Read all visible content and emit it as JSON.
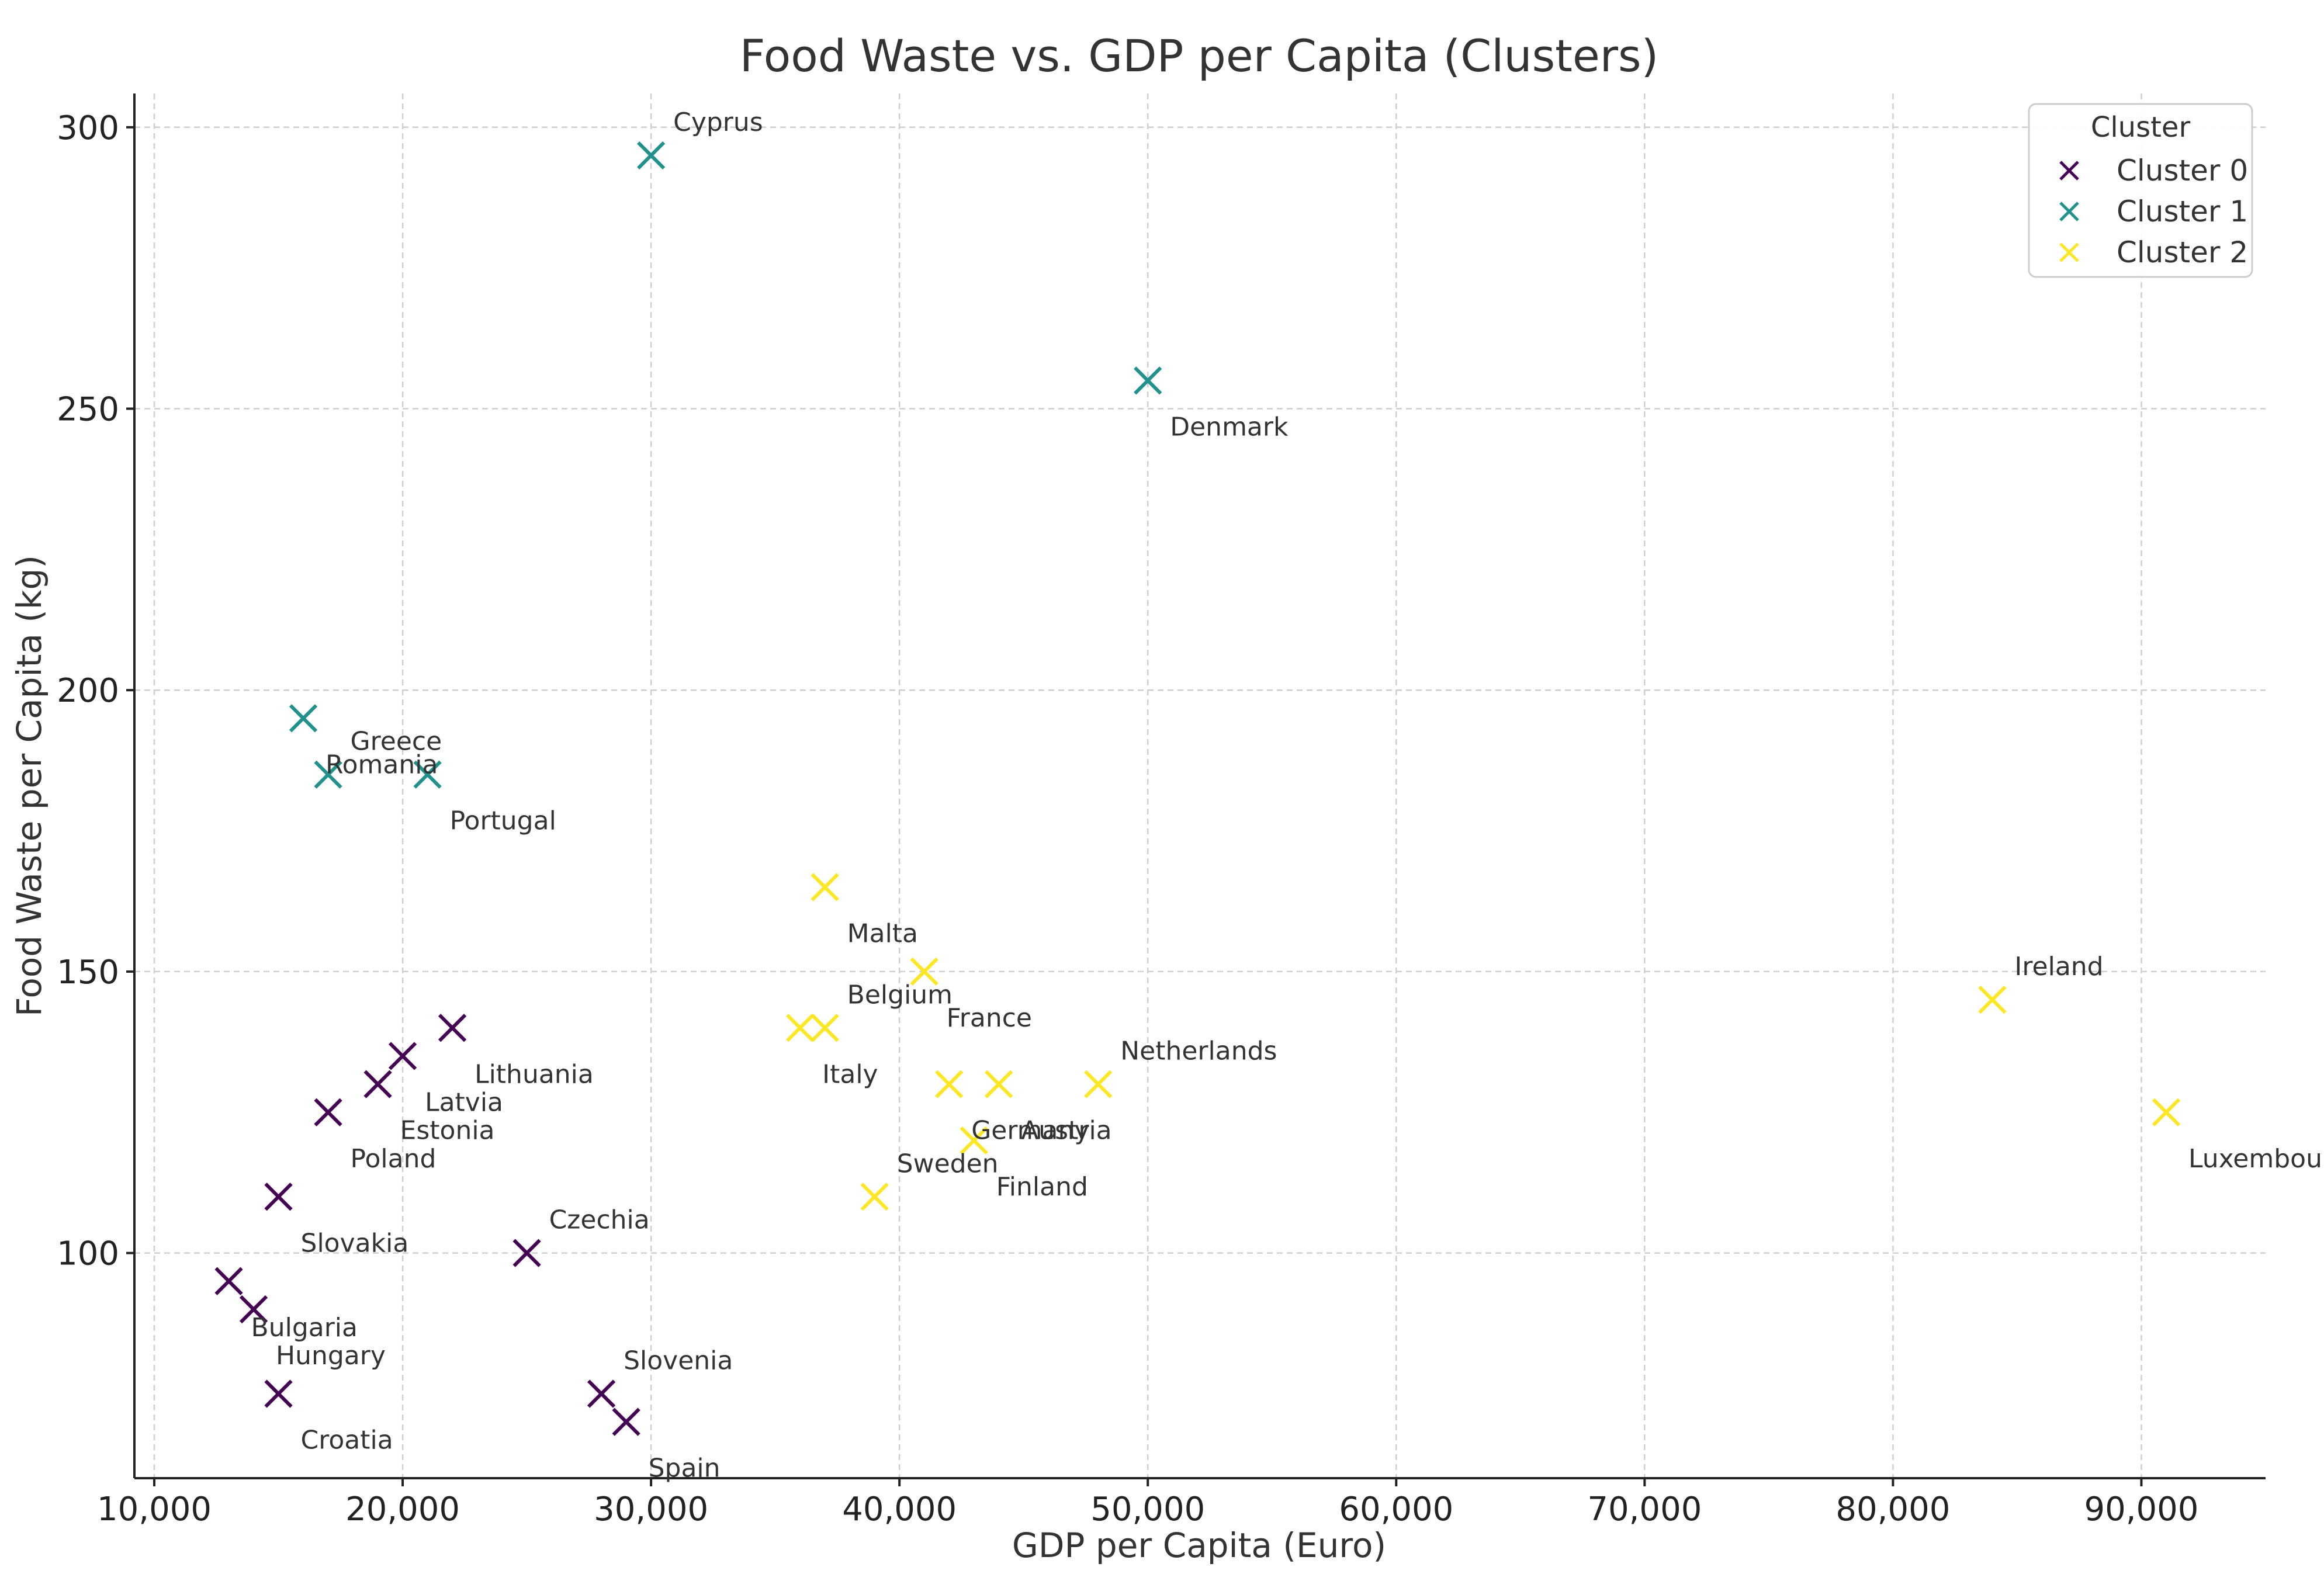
{
  "chart_data": {
    "type": "scatter",
    "title": "Food Waste vs. GDP per Capita (Clusters)",
    "xlabel": "GDP per Capita (Euro)",
    "ylabel": "Food Waste per Capita (kg)",
    "xlim": [
      9200,
      95000
    ],
    "ylim": [
      60,
      306
    ],
    "xticks": [
      10000,
      20000,
      30000,
      40000,
      50000,
      60000,
      70000,
      80000,
      90000
    ],
    "xtick_labels": [
      "10,000",
      "20,000",
      "30,000",
      "40,000",
      "50,000",
      "60,000",
      "70,000",
      "80,000",
      "90,000"
    ],
    "yticks": [
      100,
      150,
      200,
      250,
      300
    ],
    "ytick_labels": [
      "100",
      "150",
      "200",
      "250",
      "300"
    ],
    "grid": true,
    "marker": "x",
    "legend": {
      "title": "Cluster",
      "position": "top-right",
      "entries": [
        "Cluster 0",
        "Cluster 1",
        "Cluster 2"
      ]
    },
    "cluster_colors": [
      "#440154",
      "#21918c",
      "#fde725"
    ],
    "points": [
      {
        "label": "Cyprus",
        "x": 30000,
        "y": 295,
        "cluster": 1,
        "label_pos": "above"
      },
      {
        "label": "Denmark",
        "x": 50000,
        "y": 255,
        "cluster": 1,
        "label_pos": "below"
      },
      {
        "label": "Romania",
        "x": 16000,
        "y": 195,
        "cluster": 1,
        "label_pos": "below"
      },
      {
        "label": "Greece",
        "x": 17000,
        "y": 185,
        "cluster": 1,
        "label_pos": "above"
      },
      {
        "label": "Portugal",
        "x": 21000,
        "y": 185,
        "cluster": 1,
        "label_pos": "below"
      },
      {
        "label": "Malta",
        "x": 37000,
        "y": 165,
        "cluster": 2,
        "label_pos": "below"
      },
      {
        "label": "France",
        "x": 41000,
        "y": 150,
        "cluster": 2,
        "label_pos": "below"
      },
      {
        "label": "Ireland",
        "x": 84000,
        "y": 145,
        "cluster": 2,
        "label_pos": "above"
      },
      {
        "label": "Belgium",
        "x": 37000,
        "y": 140,
        "cluster": 2,
        "label_pos": "above"
      },
      {
        "label": "Italy",
        "x": 36000,
        "y": 140,
        "cluster": 2,
        "label_pos": "below"
      },
      {
        "label": "Netherlands",
        "x": 48000,
        "y": 130,
        "cluster": 2,
        "label_pos": "above"
      },
      {
        "label": "Germany",
        "x": 42000,
        "y": 130,
        "cluster": 2,
        "label_pos": "below"
      },
      {
        "label": "Austria",
        "x": 44000,
        "y": 130,
        "cluster": 2,
        "label_pos": "below"
      },
      {
        "label": "Finland",
        "x": 43000,
        "y": 120,
        "cluster": 2,
        "label_pos": "below"
      },
      {
        "label": "Sweden",
        "x": 39000,
        "y": 110,
        "cluster": 2,
        "label_pos": "above"
      },
      {
        "label": "Luxembourg",
        "x": 91000,
        "y": 125,
        "cluster": 2,
        "label_pos": "below"
      },
      {
        "label": "Lithuania",
        "x": 22000,
        "y": 140,
        "cluster": 0,
        "label_pos": "below"
      },
      {
        "label": "Latvia",
        "x": 20000,
        "y": 135,
        "cluster": 0,
        "label_pos": "below"
      },
      {
        "label": "Estonia",
        "x": 19000,
        "y": 130,
        "cluster": 0,
        "label_pos": "below"
      },
      {
        "label": "Poland",
        "x": 17000,
        "y": 125,
        "cluster": 0,
        "label_pos": "below"
      },
      {
        "label": "Slovakia",
        "x": 15000,
        "y": 110,
        "cluster": 0,
        "label_pos": "below"
      },
      {
        "label": "Czechia",
        "x": 25000,
        "y": 100,
        "cluster": 0,
        "label_pos": "above"
      },
      {
        "label": "Bulgaria",
        "x": 13000,
        "y": 95,
        "cluster": 0,
        "label_pos": "below"
      },
      {
        "label": "Hungary",
        "x": 14000,
        "y": 90,
        "cluster": 0,
        "label_pos": "below"
      },
      {
        "label": "Croatia",
        "x": 15000,
        "y": 75,
        "cluster": 0,
        "label_pos": "below"
      },
      {
        "label": "Slovenia",
        "x": 28000,
        "y": 75,
        "cluster": 0,
        "label_pos": "above"
      },
      {
        "label": "Spain",
        "x": 29000,
        "y": 70,
        "cluster": 0,
        "label_pos": "below"
      }
    ]
  }
}
